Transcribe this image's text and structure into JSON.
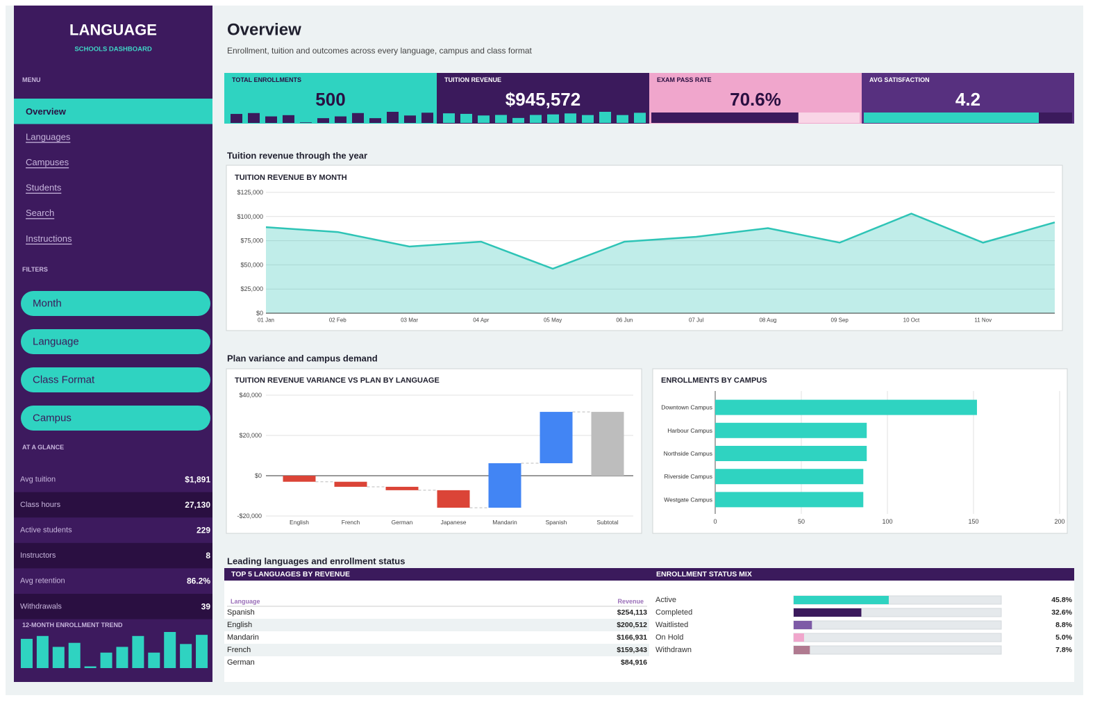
{
  "sidebar": {
    "title": "LANGUAGE",
    "subtitle": "SCHOOLS DASHBOARD",
    "menu_label": "MENU",
    "menu": [
      {
        "label": "Overview",
        "active": true
      },
      {
        "label": "Languages"
      },
      {
        "label": "Campuses"
      },
      {
        "label": "Students"
      },
      {
        "label": "Search"
      },
      {
        "label": "Instructions"
      }
    ],
    "filters_label": "FILTERS",
    "filters": [
      "Month",
      "Language",
      "Class Format",
      "Campus"
    ],
    "glance_label": "AT A GLANCE",
    "glance": [
      {
        "label": "Avg tuition",
        "value": "$1,891"
      },
      {
        "label": "Class hours",
        "value": "27,130"
      },
      {
        "label": "Active students",
        "value": "229"
      },
      {
        "label": "Instructors",
        "value": "8"
      },
      {
        "label": "Avg retention",
        "value": "86.2%"
      },
      {
        "label": "Withdrawals",
        "value": "39"
      }
    ],
    "trend": {
      "title": "12-MONTH ENROLLMENT TREND",
      "color": "#2fd3c1",
      "values": [
        51,
        56,
        37,
        44,
        3,
        27,
        37,
        56,
        27,
        63,
        42,
        58
      ]
    }
  },
  "header": {
    "title": "Overview",
    "subtitle": "Enrollment, tuition and outcomes across every language, campus and class format"
  },
  "kpis": [
    {
      "label": "TOTAL ENROLLMENTS",
      "value": 500,
      "color": "#2fd3c1"
    },
    {
      "label": "TUITION REVENUE",
      "value": 945572,
      "value_label": "$945,572",
      "color": "#3b1a5c"
    },
    {
      "label": "EXAM PASS RATE",
      "value": 70.6,
      "value_label": "70.6%",
      "color": "#f0a6cc",
      "xlim": [
        0,
        100
      ]
    },
    {
      "label": "AVG SATISFACTION",
      "value": 4.2,
      "color": "#57307f",
      "xlim": [
        0,
        5
      ]
    }
  ],
  "sections": [
    "Tuition revenue through the year",
    "Plan variance and campus demand",
    "Leading languages and enrollment status"
  ],
  "chart_data": [
    {
      "type": "area",
      "title": "TUITION REVENUE BY MONTH",
      "categories": [
        "01 Jan",
        "02 Feb",
        "03 Mar",
        "04 Apr",
        "05 May",
        "06 Jun",
        "07 Jul",
        "08 Aug",
        "09 Sep",
        "10 Oct",
        "11 Nov",
        null
      ],
      "values": [
        89000,
        84000,
        69000,
        74000,
        46000,
        74000,
        79000,
        88000,
        73000,
        103000,
        73000,
        94000
      ],
      "color": "#2ec4b6",
      "ylim": [
        0,
        125000
      ],
      "yticks": [
        {
          "value": 0,
          "label": "$0"
        },
        {
          "value": 25000,
          "label": "$25,000"
        },
        {
          "value": 50000,
          "label": "$50,000"
        },
        {
          "value": 75000,
          "label": "$75,000"
        },
        {
          "value": 100000,
          "label": "$100,000"
        },
        {
          "value": 125000,
          "label": "$125,000"
        }
      ],
      "grid": true
    },
    {
      "type": "waterfall",
      "title": "TUITION REVENUE VARIANCE VS PLAN BY LANGUAGE",
      "categories": [
        "English",
        "French",
        "German",
        "Japanese",
        "Mandarin",
        "Spanish",
        "Subtotal"
      ],
      "values": [
        -3000,
        -2500,
        -1700,
        -8700,
        22100,
        25500,
        31700
      ],
      "last_is_total": true,
      "colors": {
        "decrease": "#db4437",
        "increase": "#4285f4",
        "total": "#bdbdbd"
      },
      "ylim": [
        -20000,
        40000
      ],
      "yticks": [
        {
          "value": -20000,
          "label": "-$20,000"
        },
        {
          "value": 0,
          "label": "$0"
        },
        {
          "value": 20000,
          "label": "$20,000"
        },
        {
          "value": 40000,
          "label": "$40,000"
        }
      ],
      "grid": true
    },
    {
      "type": "hbar",
      "title": "ENROLLMENTS BY CAMPUS",
      "categories": [
        "Downtown Campus",
        "Harbour Campus",
        "Northside Campus",
        "Riverside Campus",
        "Westgate Campus"
      ],
      "values": [
        152,
        88,
        88,
        86,
        86
      ],
      "color": "#2fd3c1",
      "xlim": [
        0,
        200
      ],
      "xticks": [
        0,
        50,
        100,
        150,
        200
      ],
      "grid": true
    }
  ],
  "tables": [
    {
      "title": "TOP 5 LANGUAGES BY REVENUE",
      "columns": [
        "Language",
        "Revenue"
      ],
      "rows": [
        [
          "Spanish",
          "$254,113"
        ],
        [
          "English",
          "$200,512"
        ],
        [
          "Mandarin",
          "$166,931"
        ],
        [
          "French",
          "$159,343"
        ],
        [
          "German",
          "$84,916"
        ]
      ]
    },
    {
      "title": "ENROLLMENT STATUS MIX",
      "categories": [
        "Active",
        "Completed",
        "Waitlisted",
        "On Hold",
        "Withdrawn"
      ],
      "values": [
        45.8,
        32.6,
        8.8,
        5.0,
        7.8
      ],
      "value_labels": [
        "45.8%",
        "32.6%",
        "8.8%",
        "5.0%",
        "7.8%"
      ],
      "colors": [
        "#2fd3c1",
        "#3b1a5c",
        "#7d5ba6",
        "#f0a6cc",
        "#b07a90"
      ],
      "xlim": [
        0,
        100
      ]
    }
  ]
}
